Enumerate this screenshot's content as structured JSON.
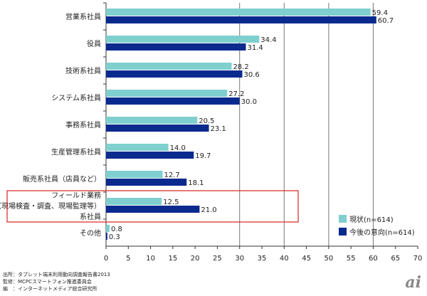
{
  "chart_data": {
    "type": "bar",
    "orientation": "horizontal",
    "categories": [
      "営業系社員",
      "役員",
      "技術系社員",
      "システム系社員",
      "事務系社員",
      "生産管理系社員",
      "販売系社員（店員など）",
      "フィールド業務（現場検査・調査、現場監理等）系社員",
      "その他"
    ],
    "category_lines": [
      [
        "営業系社員"
      ],
      [
        "役員"
      ],
      [
        "技術系社員"
      ],
      [
        "システム系社員"
      ],
      [
        "事務系社員"
      ],
      [
        "生産管理系社員"
      ],
      [
        "販売系社員（店員など）"
      ],
      [
        "フィールド業務",
        "（現場検査・調査、現場監理等）",
        "系社員"
      ],
      [
        "その他"
      ]
    ],
    "series": [
      {
        "name": "現状(n=614)",
        "color": "#7fcfcf",
        "values": [
          59.4,
          34.4,
          28.2,
          27.2,
          20.5,
          14.0,
          12.7,
          12.5,
          0.8
        ]
      },
      {
        "name": "今後の意向(n=614)",
        "color": "#0b2a8e",
        "values": [
          60.7,
          31.4,
          30.6,
          30.0,
          23.1,
          19.7,
          18.1,
          21.0,
          0.3
        ]
      }
    ],
    "xlim": [
      0,
      70
    ],
    "xticks": [
      0,
      5,
      10,
      15,
      20,
      25,
      30,
      35,
      40,
      45,
      50,
      55,
      60,
      65,
      70
    ],
    "gridlines": [
      30,
      40,
      50,
      60
    ],
    "legend": "bottom-right",
    "highlight_category": "フィールド業務（現場検査・調査、現場監理等）系社員"
  },
  "footer": {
    "source": "出所：タブレット端末利用動向調査報告書2013",
    "supervision": "監修：MCPCスマートフォン推進委員会",
    "editor": "編　：インターネットメディア総合研究所",
    "logo": "ai"
  }
}
